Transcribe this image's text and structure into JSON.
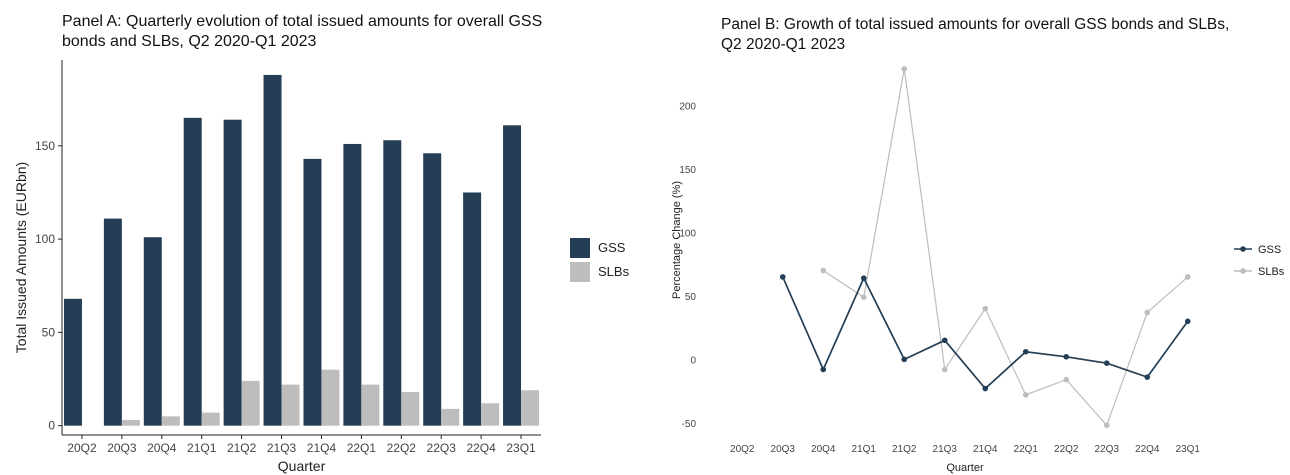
{
  "chart_data": [
    {
      "type": "bar",
      "title": "Panel A: Quarterly evolution of total issued amounts for overall GSS bonds and SLBs, Q2 2020-Q1 2023",
      "xlabel": "Quarter",
      "ylabel": "Total Issued Amounts (EURbn)",
      "categories": [
        "20Q2",
        "20Q3",
        "20Q4",
        "21Q1",
        "21Q2",
        "21Q3",
        "21Q4",
        "22Q1",
        "22Q2",
        "22Q3",
        "22Q4",
        "23Q1"
      ],
      "series": [
        {
          "name": "GSS",
          "color": "#243f55",
          "values": [
            68,
            111,
            101,
            165,
            164,
            188,
            143,
            151,
            153,
            146,
            125,
            161
          ]
        },
        {
          "name": "SLBs",
          "color": "#bdbdbd",
          "values": [
            0,
            3,
            5,
            7,
            24,
            22,
            30,
            22,
            18,
            9,
            12,
            19
          ]
        }
      ],
      "ylim": [
        -5,
        196
      ],
      "yticks": [
        0,
        50,
        100,
        150
      ],
      "grid": false,
      "legend": "right"
    },
    {
      "type": "line",
      "title": "Panel B: Growth of total issued amounts for overall GSS bonds and SLBs, Q2 2020-Q1 2023",
      "xlabel": "Quarter",
      "ylabel": "Percentage Change (%)",
      "categories": [
        "20Q2",
        "20Q3",
        "20Q4",
        "21Q1",
        "21Q2",
        "21Q3",
        "21Q4",
        "22Q1",
        "22Q2",
        "22Q3",
        "22Q4",
        "23Q1"
      ],
      "series": [
        {
          "name": "GSS",
          "color": "#243f55",
          "values": [
            null,
            65,
            -8,
            64,
            0,
            15,
            -23,
            6,
            2,
            -3,
            -14,
            30
          ]
        },
        {
          "name": "SLBs",
          "color": "#bdbdbd",
          "values": [
            null,
            null,
            70,
            49,
            229,
            -8,
            40,
            -28,
            -16,
            -52,
            37,
            65
          ]
        }
      ],
      "ylim": [
        -62,
        236
      ],
      "yticks": [
        -50,
        0,
        50,
        100,
        150,
        200
      ],
      "grid": false,
      "legend": "right"
    }
  ]
}
